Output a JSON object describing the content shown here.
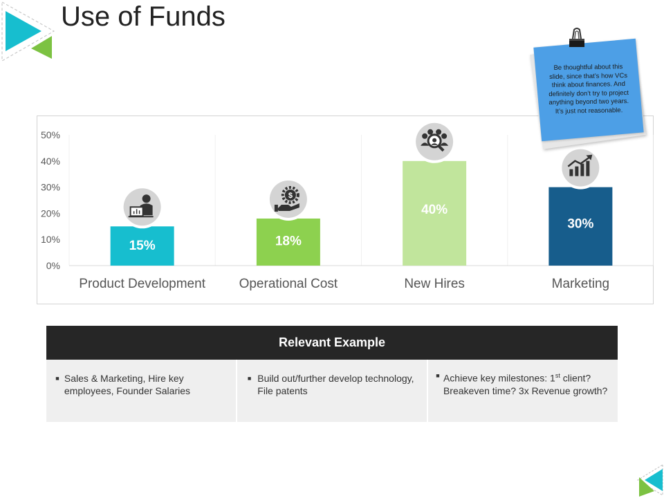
{
  "slide": {
    "title": "Use of Funds",
    "note": "Be thoughtful about this slide, since that’s how VCs think about finances. And definitely don’t try to project anything beyond two years. It’s just not reasonable."
  },
  "colors": {
    "accent_cyan": "#17becf",
    "accent_green": "#7cc242",
    "bar_product": "#17becf",
    "bar_operational": "#8dd14f",
    "bar_hires": "#c1e59c",
    "bar_marketing": "#175d8c",
    "note_blue": "#4d9fe6",
    "table_header": "#262626"
  },
  "chart_data": {
    "type": "bar",
    "categories": [
      "Product Development",
      "Operational Cost",
      "New Hires",
      "Marketing"
    ],
    "values": [
      15,
      18,
      40,
      30
    ],
    "value_labels": [
      "15%",
      "18%",
      "40%",
      "30%"
    ],
    "category_icons": [
      "presenter-icon",
      "gear-dollar-icon",
      "team-search-icon",
      "growth-chart-icon"
    ],
    "ylim": [
      0,
      50
    ],
    "yticks": [
      "0%",
      "10%",
      "20%",
      "30%",
      "40%",
      "50%"
    ],
    "grid": false
  },
  "table": {
    "header": "Relevant Example",
    "columns": [
      {
        "text": "Sales & Marketing, Hire key employees, Founder Salaries"
      },
      {
        "text": "Build out/further develop technology, File patents"
      },
      {
        "text_prefix": "Achieve key milestones: 1",
        "text_sup": "st",
        "text_suffix": " client? Breakeven time? 3x Revenue growth?"
      }
    ]
  }
}
